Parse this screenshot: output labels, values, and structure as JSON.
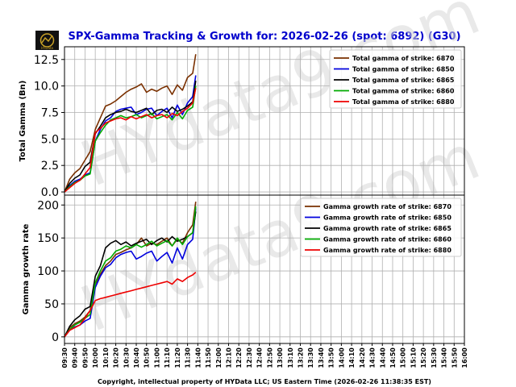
{
  "title": "SPX-Gamma Tracking & Growth for: 2026-02-26 (spot: 6892) (G30)",
  "watermark": "HYdata9.com",
  "logo_text": "HYData",
  "footer": "Copyright, intellectual property of HYData LLC; US Eastern Time (2026-02-26 11:38:35 EST)",
  "x_ticks": [
    "09:30",
    "09:40",
    "09:50",
    "10:00",
    "10:10",
    "10:20",
    "10:30",
    "10:40",
    "10:50",
    "11:00",
    "11:10",
    "11:20",
    "11:30",
    "11:40",
    "11:50",
    "12:00",
    "12:10",
    "12:20",
    "12:30",
    "12:40",
    "12:50",
    "13:00",
    "13:10",
    "13:20",
    "13:30",
    "13:40",
    "13:50",
    "14:00",
    "14:10",
    "14:20",
    "14:30",
    "14:40",
    "14:50",
    "15:00",
    "15:10",
    "15:20",
    "15:30",
    "15:40",
    "15:50",
    "16:00"
  ],
  "chart_data": [
    {
      "type": "line",
      "ylabel": "Total Gamma (Bn)",
      "ylim": [
        -0.3,
        13.7
      ],
      "yticks": [
        "0.0",
        "2.5",
        "5.0",
        "7.5",
        "10.0",
        "12.5"
      ],
      "ytick_values": [
        0,
        2.5,
        5.0,
        7.5,
        10.0,
        12.5
      ],
      "legend_position": "top-right",
      "x": [
        0,
        5,
        10,
        15,
        20,
        25,
        30,
        35,
        40,
        45,
        50,
        55,
        60,
        65,
        70,
        75,
        80,
        85,
        90,
        95,
        100,
        105,
        110,
        115,
        120,
        125,
        128
      ],
      "series": [
        {
          "name": "Total gamma of strike: 6870",
          "color": "#7a3000",
          "values": [
            0,
            1.2,
            1.8,
            2.2,
            3.0,
            3.8,
            5.9,
            7.0,
            8.1,
            8.3,
            8.6,
            9.0,
            9.4,
            9.7,
            9.9,
            10.2,
            9.4,
            9.7,
            9.5,
            9.8,
            10.0,
            9.2,
            10.1,
            9.6,
            10.8,
            11.2,
            13.0
          ]
        },
        {
          "name": "Total gamma of strike: 6850",
          "color": "#0000dd",
          "values": [
            0,
            0.6,
            1.0,
            1.2,
            1.6,
            1.8,
            4.8,
            5.9,
            6.7,
            7.0,
            7.6,
            7.8,
            7.9,
            8.0,
            7.3,
            7.5,
            7.8,
            7.9,
            7.2,
            7.6,
            7.9,
            7.0,
            8.2,
            7.3,
            8.4,
            9.0,
            11.0
          ]
        },
        {
          "name": "Total gamma of strike: 6865",
          "color": "#000000",
          "values": [
            0,
            0.8,
            1.3,
            1.6,
            2.4,
            2.8,
            5.5,
            6.2,
            7.0,
            7.3,
            7.5,
            7.6,
            7.8,
            7.6,
            7.5,
            7.7,
            7.9,
            7.3,
            7.7,
            7.8,
            7.5,
            8.0,
            7.6,
            7.8,
            8.1,
            8.5,
            10.5
          ]
        },
        {
          "name": "Total gamma of strike: 6860",
          "color": "#00aa00",
          "values": [
            0,
            0.5,
            0.9,
            1.1,
            1.5,
            1.7,
            4.8,
            5.6,
            6.3,
            6.8,
            7.0,
            7.2,
            7.0,
            7.1,
            7.3,
            7.0,
            7.2,
            7.4,
            6.9,
            7.1,
            7.3,
            6.8,
            7.5,
            6.9,
            7.7,
            8.0,
            10.0
          ]
        },
        {
          "name": "Total gamma of strike: 6880",
          "color": "#ee0000",
          "values": [
            0,
            0.4,
            0.8,
            1.1,
            1.7,
            2.3,
            5.6,
            6.0,
            6.5,
            6.7,
            6.9,
            7.0,
            6.8,
            7.1,
            6.9,
            7.1,
            7.3,
            7.0,
            7.2,
            7.3,
            7.0,
            7.4,
            7.2,
            7.6,
            7.9,
            8.4,
            9.8
          ]
        }
      ]
    },
    {
      "type": "line",
      "ylabel": "Gamma growth rate",
      "ylim": [
        -10,
        215
      ],
      "yticks": [
        "0",
        "50",
        "100",
        "150",
        "200"
      ],
      "ytick_values": [
        0,
        50,
        100,
        150,
        200
      ],
      "legend_position": "top-right",
      "x": [
        0,
        5,
        10,
        15,
        20,
        25,
        30,
        35,
        40,
        45,
        50,
        55,
        60,
        65,
        70,
        75,
        80,
        85,
        90,
        95,
        100,
        105,
        110,
        115,
        120,
        125,
        128
      ],
      "series": [
        {
          "name": "Gamma growth rate of strike: 6870",
          "color": "#7a3000",
          "values": [
            0,
            14,
            20,
            24,
            30,
            40,
            80,
            95,
            108,
            115,
            125,
            128,
            132,
            135,
            140,
            150,
            138,
            142,
            140,
            145,
            150,
            138,
            148,
            142,
            158,
            170,
            205
          ]
        },
        {
          "name": "Gamma growth rate of strike: 6850",
          "color": "#0000dd",
          "values": [
            0,
            10,
            15,
            18,
            24,
            28,
            75,
            92,
            105,
            110,
            120,
            125,
            128,
            130,
            118,
            122,
            127,
            130,
            115,
            122,
            128,
            112,
            135,
            118,
            140,
            148,
            195
          ]
        },
        {
          "name": "Gamma growth rate of strike: 6865",
          "color": "#000000",
          "values": [
            0,
            16,
            26,
            32,
            42,
            46,
            92,
            108,
            135,
            142,
            146,
            140,
            144,
            138,
            142,
            145,
            148,
            140,
            146,
            150,
            144,
            152,
            145,
            148,
            152,
            158,
            190
          ]
        },
        {
          "name": "Gamma growth rate of strike: 6860",
          "color": "#00aa00",
          "values": [
            0,
            11,
            18,
            22,
            28,
            34,
            82,
            100,
            115,
            120,
            130,
            133,
            138,
            135,
            140,
            136,
            140,
            145,
            138,
            142,
            146,
            138,
            150,
            140,
            152,
            158,
            198
          ]
        },
        {
          "name": "Gamma growth rate of strike: 6880",
          "color": "#ee0000",
          "values": [
            0,
            10,
            14,
            18,
            28,
            40,
            55,
            58,
            60,
            62,
            64,
            66,
            68,
            70,
            72,
            74,
            76,
            78,
            80,
            82,
            84,
            80,
            88,
            84,
            90,
            94,
            98
          ]
        }
      ]
    }
  ]
}
